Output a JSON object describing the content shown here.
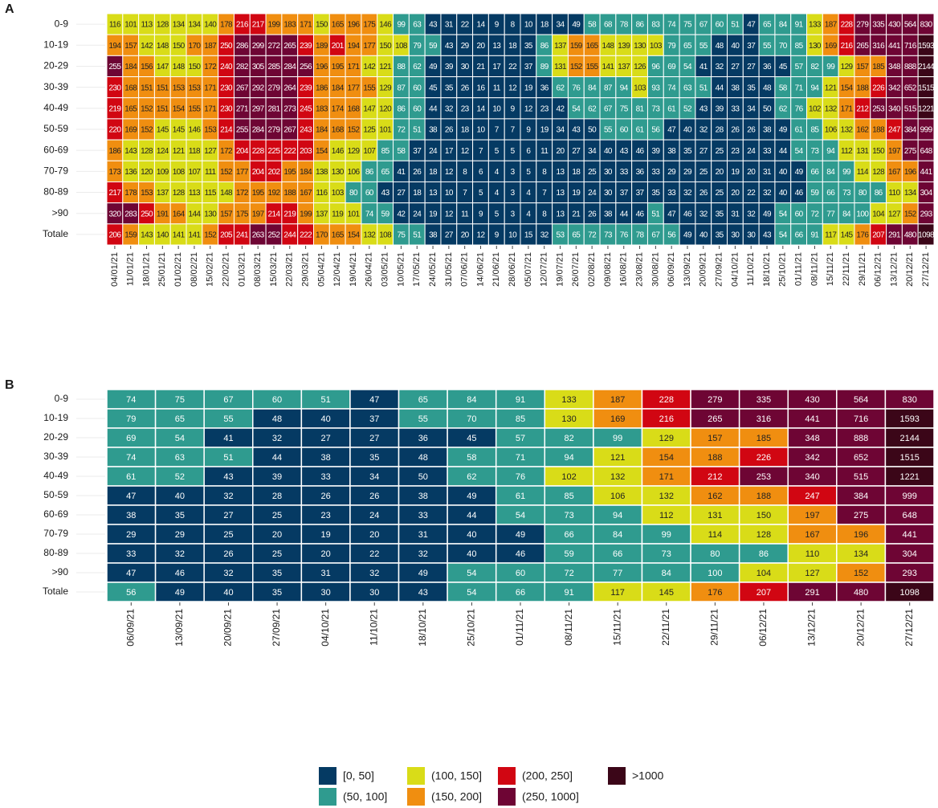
{
  "chart_data": [
    {
      "type": "heatmap",
      "title": "A",
      "x": [
        "04/01/21",
        "11/01/21",
        "18/01/21",
        "25/01/21",
        "01/02/21",
        "08/02/21",
        "15/02/21",
        "22/02/21",
        "01/03/21",
        "08/03/21",
        "15/03/21",
        "22/03/21",
        "29/03/21",
        "05/04/21",
        "12/04/21",
        "19/04/21",
        "26/04/21",
        "03/05/21",
        "10/05/21",
        "17/05/21",
        "24/05/21",
        "31/05/21",
        "07/06/21",
        "14/06/21",
        "21/06/21",
        "28/06/21",
        "05/07/21",
        "12/07/21",
        "19/07/21",
        "26/07/21",
        "02/08/21",
        "09/08/21",
        "16/08/21",
        "23/08/21",
        "30/08/21",
        "06/09/21",
        "13/09/21",
        "20/09/21",
        "27/09/21",
        "04/10/21",
        "11/10/21",
        "18/10/21",
        "25/10/21",
        "01/11/21",
        "08/11/21",
        "15/11/21",
        "22/11/21",
        "29/11/21",
        "06/12/21",
        "13/12/21",
        "20/12/21",
        "27/12/21"
      ],
      "y": [
        "0-9",
        "10-19",
        "20-29",
        "30-39",
        "40-49",
        "50-59",
        "60-69",
        "70-79",
        "80-89",
        ">90",
        "Totale"
      ],
      "values": [
        [
          116,
          101,
          113,
          128,
          134,
          134,
          140,
          178,
          216,
          217,
          199,
          183,
          171,
          150,
          165,
          196,
          175,
          146,
          99,
          63,
          43,
          31,
          22,
          14,
          9,
          8,
          10,
          18,
          34,
          49,
          58,
          68,
          78,
          86,
          83,
          74,
          75,
          67,
          60,
          51,
          47,
          65,
          84,
          91,
          133,
          187,
          228,
          279,
          335,
          430,
          564,
          830
        ],
        [
          194,
          157,
          142,
          148,
          150,
          170,
          187,
          250,
          286,
          299,
          272,
          265,
          239,
          189,
          201,
          194,
          177,
          150,
          108,
          79,
          59,
          43,
          29,
          20,
          13,
          18,
          35,
          86,
          137,
          159,
          165,
          148,
          139,
          130,
          103,
          79,
          65,
          55,
          48,
          40,
          37,
          55,
          70,
          85,
          130,
          169,
          216,
          265,
          316,
          441,
          716,
          1593
        ],
        [
          255,
          184,
          156,
          147,
          148,
          150,
          172,
          240,
          282,
          305,
          285,
          284,
          256,
          196,
          195,
          171,
          142,
          121,
          88,
          62,
          49,
          39,
          30,
          21,
          17,
          22,
          37,
          89,
          131,
          152,
          155,
          141,
          137,
          126,
          96,
          69,
          54,
          41,
          32,
          27,
          27,
          36,
          45,
          57,
          82,
          99,
          129,
          157,
          185,
          348,
          888,
          2144
        ],
        [
          230,
          168,
          151,
          151,
          153,
          153,
          171,
          230,
          267,
          292,
          279,
          264,
          239,
          186,
          184,
          177,
          155,
          129,
          87,
          60,
          45,
          35,
          26,
          16,
          11,
          12,
          19,
          36,
          62,
          76,
          84,
          87,
          94,
          103,
          93,
          74,
          63,
          51,
          44,
          38,
          35,
          48,
          58,
          71,
          94,
          121,
          154,
          188,
          226,
          342,
          652,
          1515
        ],
        [
          219,
          165,
          152,
          151,
          154,
          155,
          171,
          230,
          271,
          297,
          281,
          273,
          245,
          183,
          174,
          168,
          147,
          120,
          86,
          60,
          44,
          32,
          23,
          14,
          10,
          9,
          12,
          23,
          42,
          54,
          62,
          67,
          75,
          81,
          73,
          61,
          52,
          43,
          39,
          33,
          34,
          50,
          62,
          76,
          102,
          132,
          171,
          212,
          253,
          340,
          515,
          1221
        ],
        [
          220,
          169,
          152,
          145,
          145,
          146,
          153,
          214,
          255,
          284,
          279,
          267,
          243,
          184,
          168,
          152,
          125,
          101,
          72,
          51,
          38,
          26,
          18,
          10,
          7,
          7,
          9,
          19,
          34,
          43,
          50,
          55,
          60,
          61,
          56,
          47,
          40,
          32,
          28,
          26,
          26,
          38,
          49,
          61,
          85,
          106,
          132,
          162,
          188,
          247,
          384,
          999
        ],
        [
          186,
          143,
          128,
          124,
          121,
          118,
          127,
          172,
          204,
          228,
          225,
          222,
          203,
          154,
          146,
          129,
          107,
          85,
          58,
          37,
          24,
          17,
          12,
          7,
          5,
          5,
          6,
          11,
          20,
          27,
          34,
          40,
          43,
          46,
          39,
          38,
          35,
          27,
          25,
          23,
          24,
          33,
          44,
          54,
          73,
          94,
          112,
          131,
          150,
          197,
          275,
          648
        ],
        [
          173,
          136,
          120,
          109,
          108,
          107,
          111,
          152,
          177,
          204,
          202,
          195,
          184,
          138,
          130,
          106,
          86,
          65,
          41,
          26,
          18,
          12,
          8,
          6,
          4,
          3,
          5,
          8,
          13,
          18,
          25,
          30,
          33,
          36,
          33,
          29,
          29,
          25,
          20,
          19,
          20,
          31,
          40,
          49,
          66,
          84,
          99,
          114,
          128,
          167,
          196,
          441
        ],
        [
          217,
          178,
          153,
          137,
          128,
          113,
          115,
          148,
          172,
          195,
          192,
          188,
          167,
          116,
          103,
          80,
          60,
          43,
          27,
          18,
          13,
          10,
          7,
          5,
          4,
          3,
          4,
          7,
          13,
          19,
          24,
          30,
          37,
          37,
          35,
          33,
          32,
          26,
          25,
          20,
          22,
          32,
          40,
          46,
          59,
          66,
          73,
          80,
          86,
          110,
          134,
          304
        ],
        [
          320,
          283,
          250,
          191,
          164,
          144,
          130,
          157,
          175,
          197,
          214,
          219,
          199,
          137,
          119,
          101,
          74,
          59,
          42,
          24,
          19,
          12,
          11,
          9,
          5,
          3,
          4,
          8,
          13,
          21,
          26,
          38,
          44,
          46,
          51,
          47,
          46,
          32,
          35,
          31,
          32,
          49,
          54,
          60,
          72,
          77,
          84,
          100,
          104,
          127,
          152,
          293
        ],
        [
          206,
          159,
          143,
          140,
          141,
          141,
          152,
          205,
          241,
          263,
          252,
          244,
          222,
          170,
          165,
          154,
          132,
          108,
          75,
          51,
          38,
          27,
          20,
          12,
          9,
          10,
          15,
          32,
          53,
          65,
          72,
          73,
          76,
          78,
          67,
          56,
          49,
          40,
          35,
          30,
          30,
          43,
          54,
          66,
          91,
          117,
          145,
          176,
          207,
          291,
          480,
          1098
        ]
      ]
    },
    {
      "type": "heatmap",
      "title": "B",
      "x": [
        "06/09/21",
        "13/09/21",
        "20/09/21",
        "27/09/21",
        "04/10/21",
        "11/10/21",
        "18/10/21",
        "25/10/21",
        "01/11/21",
        "08/11/21",
        "15/11/21",
        "22/11/21",
        "29/11/21",
        "06/12/21",
        "13/12/21",
        "20/12/21",
        "27/12/21"
      ],
      "y": [
        "0-9",
        "10-19",
        "20-29",
        "30-39",
        "40-49",
        "50-59",
        "60-69",
        "70-79",
        "80-89",
        ">90",
        "Totale"
      ],
      "values": [
        [
          74,
          75,
          67,
          60,
          51,
          47,
          65,
          84,
          91,
          133,
          187,
          228,
          279,
          335,
          430,
          564,
          830
        ],
        [
          79,
          65,
          55,
          48,
          40,
          37,
          55,
          70,
          85,
          130,
          169,
          216,
          265,
          316,
          441,
          716,
          1593
        ],
        [
          69,
          54,
          41,
          32,
          27,
          27,
          36,
          45,
          57,
          82,
          99,
          129,
          157,
          185,
          348,
          888,
          2144
        ],
        [
          74,
          63,
          51,
          44,
          38,
          35,
          48,
          58,
          71,
          94,
          121,
          154,
          188,
          226,
          342,
          652,
          1515
        ],
        [
          61,
          52,
          43,
          39,
          33,
          34,
          50,
          62,
          76,
          102,
          132,
          171,
          212,
          253,
          340,
          515,
          1221
        ],
        [
          47,
          40,
          32,
          28,
          26,
          26,
          38,
          49,
          61,
          85,
          106,
          132,
          162,
          188,
          247,
          384,
          999
        ],
        [
          38,
          35,
          27,
          25,
          23,
          24,
          33,
          44,
          54,
          73,
          94,
          112,
          131,
          150,
          197,
          275,
          648
        ],
        [
          29,
          29,
          25,
          20,
          19,
          20,
          31,
          40,
          49,
          66,
          84,
          99,
          114,
          128,
          167,
          196,
          441
        ],
        [
          33,
          32,
          26,
          25,
          20,
          22,
          32,
          40,
          46,
          59,
          66,
          73,
          80,
          86,
          110,
          134,
          304
        ],
        [
          47,
          46,
          32,
          35,
          31,
          32,
          49,
          54,
          60,
          72,
          77,
          84,
          100,
          104,
          127,
          152,
          293
        ],
        [
          56,
          49,
          40,
          35,
          30,
          30,
          43,
          54,
          66,
          91,
          117,
          145,
          176,
          207,
          291,
          480,
          1098
        ]
      ]
    }
  ],
  "legend": {
    "entries": [
      {
        "label": "[0, 50]",
        "min": 0,
        "max": 50,
        "color": "#053a63"
      },
      {
        "label": "(50, 100]",
        "min": 50,
        "max": 100,
        "color": "#2f9b8f"
      },
      {
        "label": "(100, 150]",
        "min": 100,
        "max": 150,
        "color": "#d9dc18"
      },
      {
        "label": "(150, 200]",
        "min": 150,
        "max": 200,
        "color": "#f08e10"
      },
      {
        "label": "(200, 250]",
        "min": 200,
        "max": 250,
        "color": "#d10612"
      },
      {
        "label": "(250, 1000]",
        "min": 250,
        "max": 1000,
        "color": "#6e0534"
      },
      {
        "label": ">1000",
        "min": 1000,
        "color": "#3b0618"
      }
    ]
  }
}
